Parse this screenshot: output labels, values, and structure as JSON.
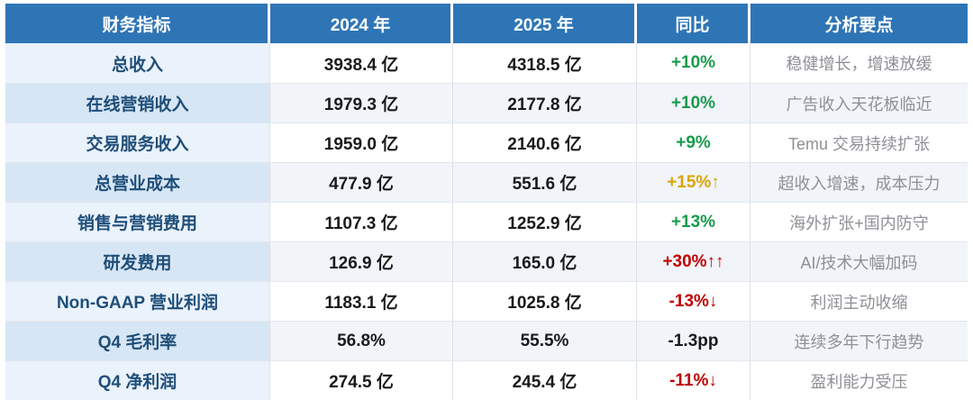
{
  "chart_data": {
    "type": "table",
    "columns": [
      "财务指标",
      "2024 年",
      "2025 年",
      "同比",
      "分析要点"
    ],
    "rows": [
      {
        "indicator": "总收入",
        "y2024": "3938.4 亿",
        "y2025": "4318.5 亿",
        "yoy": "+10%",
        "yoy_color": "green",
        "analysis": "稳健增长，增速放缓"
      },
      {
        "indicator": "在线营销收入",
        "y2024": "1979.3 亿",
        "y2025": "2177.8 亿",
        "yoy": "+10%",
        "yoy_color": "green",
        "analysis": "广告收入天花板临近"
      },
      {
        "indicator": "交易服务收入",
        "y2024": "1959.0 亿",
        "y2025": "2140.6 亿",
        "yoy": "+9%",
        "yoy_color": "green",
        "analysis": "Temu 交易持续扩张"
      },
      {
        "indicator": "总营业成本",
        "y2024": "477.9 亿",
        "y2025": "551.6 亿",
        "yoy": "+15%↑",
        "yoy_color": "gold",
        "analysis": "超收入增速，成本压力"
      },
      {
        "indicator": "销售与营销费用",
        "y2024": "1107.3 亿",
        "y2025": "1252.9 亿",
        "yoy": "+13%",
        "yoy_color": "green",
        "analysis": "海外扩张+国内防守"
      },
      {
        "indicator": "研发费用",
        "y2024": "126.9 亿",
        "y2025": "165.0 亿",
        "yoy": "+30%↑↑",
        "yoy_color": "red",
        "analysis": "AI/技术大幅加码"
      },
      {
        "indicator": "Non-GAAP 营业利润",
        "y2024": "1183.1 亿",
        "y2025": "1025.8 亿",
        "yoy": "-13%↓",
        "yoy_color": "red",
        "analysis": "利润主动收缩"
      },
      {
        "indicator": "Q4 毛利率",
        "y2024": "56.8%",
        "y2025": "55.5%",
        "yoy": "-1.3pp",
        "yoy_color": "dark",
        "analysis": "连续多年下行趋势"
      },
      {
        "indicator": "Q4 净利润",
        "y2024": "274.5 亿",
        "y2025": "245.4 亿",
        "yoy": "-11%↓",
        "yoy_color": "red",
        "analysis": "盈利能力受压"
      }
    ]
  },
  "colors": {
    "header_bg": "#2E75B6",
    "header_text": "#FFFFFF",
    "indicator_text": "#1F4E79",
    "green": "#189A4C",
    "gold": "#D9A400",
    "red": "#C00000",
    "dark": "#1A1A1A",
    "analysis_text": "#8E9095",
    "row_tint_col1_light": "#EAF2FB",
    "row_tint_col1_dark": "#D7E6F4",
    "row_tint_light": "#FFFFFF",
    "row_tint_dark": "#F1F4F9"
  }
}
